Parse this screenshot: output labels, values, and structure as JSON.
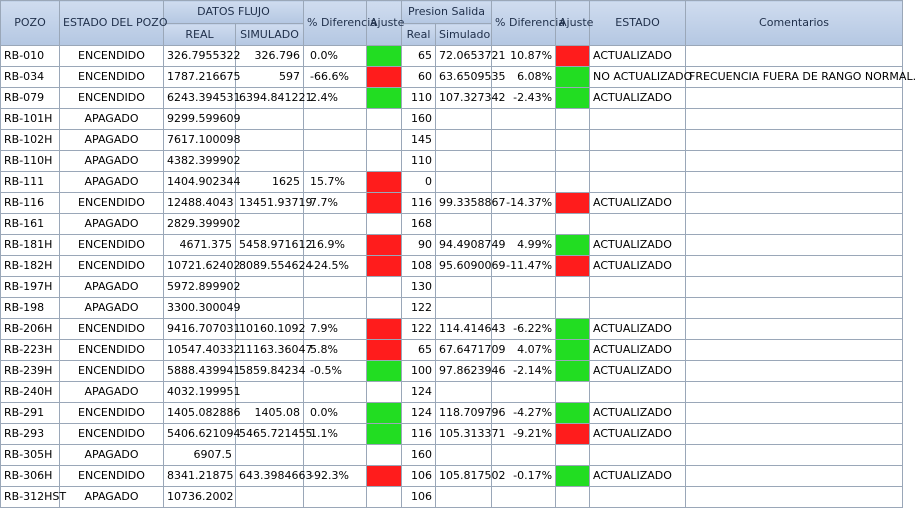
{
  "headers": {
    "pozo": "POZO",
    "estado_pozo": "ESTADO DEL POZO",
    "datos_flujo": "DATOS FLUJO",
    "real": "REAL",
    "simulado": "SIMULADO",
    "dif1": "% Diferencia",
    "ajuste1": "Ajuste",
    "presion_salida": "Presion Salida",
    "p_real": "Real",
    "p_simulado": "Simulado",
    "dif2": "% Diferencia",
    "ajuste2": "Ajuste",
    "estado": "ESTADO",
    "comentarios": "Comentarios"
  },
  "colors": {
    "ok": "#22dd22",
    "bad": "#ff1c1c",
    "header": "#b4c7e2"
  },
  "rows": [
    {
      "pozo": "RB-010",
      "estado_pozo": "ENCENDIDO",
      "real": "326.7955322",
      "sim": "326.796",
      "dif": "0.0%",
      "aj1": "green",
      "preal": "65",
      "psim": "72.0653721",
      "pdif": "10.87%",
      "aj2": "red",
      "estado": "ACTUALIZADO",
      "coment": ""
    },
    {
      "pozo": "RB-034",
      "estado_pozo": "ENCENDIDO",
      "real": "1787.216675",
      "sim": "597",
      "dif": "-66.6%",
      "aj1": "red",
      "preal": "60",
      "psim": "63.6509535",
      "pdif": "6.08%",
      "aj2": "green",
      "estado": "NO ACTUALIZADO",
      "coment": "FRECUENCIA FUERA DE RANGO NORMAL."
    },
    {
      "pozo": "RB-079",
      "estado_pozo": "ENCENDIDO",
      "real": "6243.394531",
      "sim": "6394.841221",
      "dif": "2.4%",
      "aj1": "green",
      "preal": "110",
      "psim": "107.327342",
      "pdif": "-2.43%",
      "aj2": "green",
      "estado": "ACTUALIZADO",
      "coment": ""
    },
    {
      "pozo": "RB-101H",
      "estado_pozo": "APAGADO",
      "real": "9299.599609",
      "sim": "",
      "dif": "",
      "aj1": "",
      "preal": "160",
      "psim": "",
      "pdif": "",
      "aj2": "",
      "estado": "",
      "coment": ""
    },
    {
      "pozo": "RB-102H",
      "estado_pozo": "APAGADO",
      "real": "7617.100098",
      "sim": "",
      "dif": "",
      "aj1": "",
      "preal": "145",
      "psim": "",
      "pdif": "",
      "aj2": "",
      "estado": "",
      "coment": ""
    },
    {
      "pozo": "RB-110H",
      "estado_pozo": "APAGADO",
      "real": "4382.399902",
      "sim": "",
      "dif": "",
      "aj1": "",
      "preal": "110",
      "psim": "",
      "pdif": "",
      "aj2": "",
      "estado": "",
      "coment": ""
    },
    {
      "pozo": "RB-111",
      "estado_pozo": "APAGADO",
      "real": "1404.902344",
      "sim": "1625",
      "dif": "15.7%",
      "aj1": "red",
      "preal": "0",
      "psim": "",
      "pdif": "",
      "aj2": "",
      "estado": "",
      "coment": ""
    },
    {
      "pozo": "RB-116",
      "estado_pozo": "ENCENDIDO",
      "real": "12488.4043",
      "sim": "13451.93719",
      "dif": "7.7%",
      "aj1": "red",
      "preal": "116",
      "psim": "99.3358867",
      "pdif": "-14.37%",
      "aj2": "red",
      "estado": "ACTUALIZADO",
      "coment": ""
    },
    {
      "pozo": "RB-161",
      "estado_pozo": "APAGADO",
      "real": "2829.399902",
      "sim": "",
      "dif": "",
      "aj1": "",
      "preal": "168",
      "psim": "",
      "pdif": "",
      "aj2": "",
      "estado": "",
      "coment": ""
    },
    {
      "pozo": "RB-181H",
      "estado_pozo": "ENCENDIDO",
      "real": "4671.375",
      "sim": "5458.971612",
      "dif": "16.9%",
      "aj1": "red",
      "preal": "90",
      "psim": "94.4908749",
      "pdif": "4.99%",
      "aj2": "green",
      "estado": "ACTUALIZADO",
      "coment": ""
    },
    {
      "pozo": "RB-182H",
      "estado_pozo": "ENCENDIDO",
      "real": "10721.62402",
      "sim": "8089.554624",
      "dif": "-24.5%",
      "aj1": "red",
      "preal": "108",
      "psim": "95.6090069",
      "pdif": "-11.47%",
      "aj2": "red",
      "estado": "ACTUALIZADO",
      "coment": ""
    },
    {
      "pozo": "RB-197H",
      "estado_pozo": "APAGADO",
      "real": "5972.899902",
      "sim": "",
      "dif": "",
      "aj1": "",
      "preal": "130",
      "psim": "",
      "pdif": "",
      "aj2": "",
      "estado": "",
      "coment": ""
    },
    {
      "pozo": "RB-198",
      "estado_pozo": "APAGADO",
      "real": "3300.300049",
      "sim": "",
      "dif": "",
      "aj1": "",
      "preal": "122",
      "psim": "",
      "pdif": "",
      "aj2": "",
      "estado": "",
      "coment": ""
    },
    {
      "pozo": "RB-206H",
      "estado_pozo": "ENCENDIDO",
      "real": "9416.707031",
      "sim": "10160.1092",
      "dif": "7.9%",
      "aj1": "red",
      "preal": "122",
      "psim": "114.414643",
      "pdif": "-6.22%",
      "aj2": "green",
      "estado": "ACTUALIZADO",
      "coment": ""
    },
    {
      "pozo": "RB-223H",
      "estado_pozo": "ENCENDIDO",
      "real": "10547.40332",
      "sim": "11163.36047",
      "dif": "5.8%",
      "aj1": "red",
      "preal": "65",
      "psim": "67.6471709",
      "pdif": "4.07%",
      "aj2": "green",
      "estado": "ACTUALIZADO",
      "coment": ""
    },
    {
      "pozo": "RB-239H",
      "estado_pozo": "ENCENDIDO",
      "real": "5888.439941",
      "sim": "5859.84234",
      "dif": "-0.5%",
      "aj1": "green",
      "preal": "100",
      "psim": "97.8623946",
      "pdif": "-2.14%",
      "aj2": "green",
      "estado": "ACTUALIZADO",
      "coment": ""
    },
    {
      "pozo": "RB-240H",
      "estado_pozo": "APAGADO",
      "real": "4032.199951",
      "sim": "",
      "dif": "",
      "aj1": "",
      "preal": "124",
      "psim": "",
      "pdif": "",
      "aj2": "",
      "estado": "",
      "coment": ""
    },
    {
      "pozo": "RB-291",
      "estado_pozo": "ENCENDIDO",
      "real": "1405.082886",
      "sim": "1405.08",
      "dif": "0.0%",
      "aj1": "green",
      "preal": "124",
      "psim": "118.709796",
      "pdif": "-4.27%",
      "aj2": "green",
      "estado": "ACTUALIZADO",
      "coment": ""
    },
    {
      "pozo": "RB-293",
      "estado_pozo": "ENCENDIDO",
      "real": "5406.621094",
      "sim": "5465.721455",
      "dif": "1.1%",
      "aj1": "green",
      "preal": "116",
      "psim": "105.313371",
      "pdif": "-9.21%",
      "aj2": "red",
      "estado": "ACTUALIZADO",
      "coment": ""
    },
    {
      "pozo": "RB-305H",
      "estado_pozo": "APAGADO",
      "real": "6907.5",
      "sim": "",
      "dif": "",
      "aj1": "",
      "preal": "160",
      "psim": "",
      "pdif": "",
      "aj2": "",
      "estado": "",
      "coment": ""
    },
    {
      "pozo": "RB-306H",
      "estado_pozo": "ENCENDIDO",
      "real": "8341.21875",
      "sim": "643.3984663",
      "dif": "-92.3%",
      "aj1": "red",
      "preal": "106",
      "psim": "105.817502",
      "pdif": "-0.17%",
      "aj2": "green",
      "estado": "ACTUALIZADO",
      "coment": ""
    },
    {
      "pozo": "RB-312HST",
      "estado_pozo": "APAGADO",
      "real": "10736.2002",
      "sim": "",
      "dif": "",
      "aj1": "",
      "preal": "106",
      "psim": "",
      "pdif": "",
      "aj2": "",
      "estado": "",
      "coment": ""
    }
  ]
}
